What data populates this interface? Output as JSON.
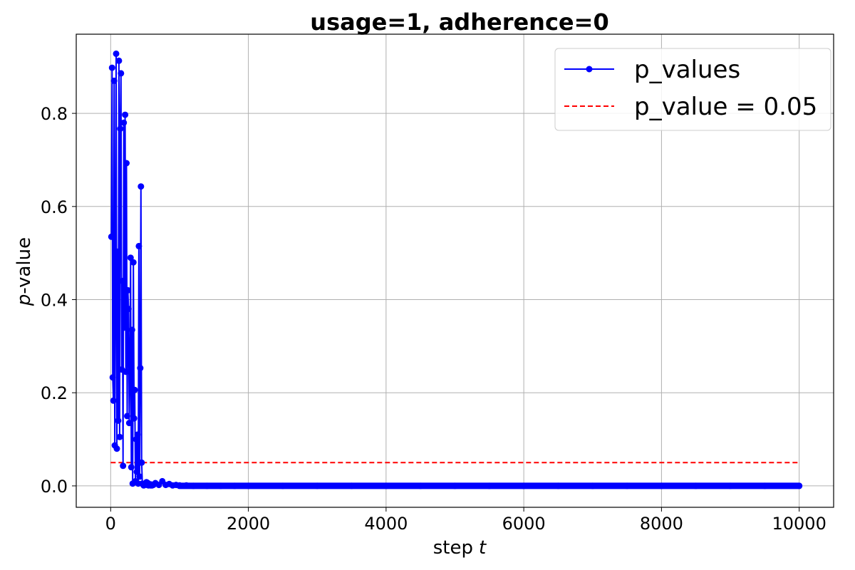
{
  "chart_data": {
    "type": "line",
    "title": "usage=1, adherence=0",
    "xlabel": "step",
    "xlabel_var": "t",
    "ylabel_var": "p",
    "ylabel": "-value",
    "xlim": [
      -500,
      10500
    ],
    "ylim": [
      -0.046,
      0.97
    ],
    "xticks": [
      0,
      2000,
      4000,
      6000,
      8000,
      10000
    ],
    "yticks": [
      0.0,
      0.2,
      0.4,
      0.6,
      0.8
    ],
    "xtick_labels": [
      "0",
      "2000",
      "4000",
      "6000",
      "8000",
      "10000"
    ],
    "ytick_labels": [
      "0.0",
      "0.2",
      "0.4",
      "0.6",
      "0.8"
    ],
    "grid": true,
    "legend_position": "top-right",
    "series": [
      {
        "name": "p_values",
        "color": "#0000ff",
        "marker": "circle",
        "x": [
          10,
          20,
          30,
          40,
          50,
          60,
          70,
          80,
          90,
          100,
          110,
          120,
          130,
          140,
          150,
          160,
          170,
          180,
          190,
          200,
          210,
          220,
          230,
          240,
          250,
          260,
          270,
          280,
          290,
          300,
          310,
          320,
          330,
          340,
          350,
          360,
          370,
          380,
          390,
          400,
          410,
          420,
          430,
          440,
          450,
          460,
          470,
          480,
          490,
          500,
          510,
          520,
          530,
          540,
          550,
          560,
          570,
          580,
          590,
          600,
          620,
          650,
          700,
          750,
          800,
          850,
          900,
          950,
          1000,
          1100,
          1200,
          1400,
          1600,
          1800,
          2000,
          2500,
          3000,
          3500,
          4000,
          4500,
          5000,
          5500,
          6000,
          6500,
          7000,
          7500,
          8000,
          8500,
          9000,
          9500,
          10000
        ],
        "y": [
          0.535,
          0.898,
          0.233,
          0.183,
          0.87,
          0.087,
          0.46,
          0.928,
          0.08,
          0.503,
          0.14,
          0.913,
          0.105,
          0.767,
          0.886,
          0.25,
          0.44,
          0.043,
          0.78,
          0.34,
          0.797,
          0.245,
          0.693,
          0.15,
          0.42,
          0.38,
          0.135,
          0.245,
          0.49,
          0.04,
          0.335,
          0.005,
          0.48,
          0.145,
          0.206,
          0.01,
          0.1,
          0.03,
          0.11,
          0.005,
          0.515,
          0.02,
          0.253,
          0.643,
          0.05,
          0.005,
          0.003,
          0.001,
          0.002,
          0.004,
          0.003,
          0.008,
          0.002,
          0.006,
          0.001,
          0.004,
          0.002,
          0.001,
          0.003,
          0.001,
          0.002,
          0.006,
          0.002,
          0.01,
          0.002,
          0.004,
          0.001,
          0.002,
          0.001,
          0.001,
          0.0,
          0.0,
          0.0,
          0.0,
          0.0,
          0.0,
          0.0,
          0.0,
          0.0,
          0.0,
          0.0,
          0.0,
          0.0,
          0.0,
          0.0,
          0.0,
          0.0,
          0.0,
          0.0,
          0.0,
          0.0
        ]
      },
      {
        "name": "p_value = 0.05",
        "color": "#ff0000",
        "style": "dashed",
        "x": [
          0,
          10000
        ],
        "y": [
          0.05,
          0.05
        ]
      }
    ]
  }
}
